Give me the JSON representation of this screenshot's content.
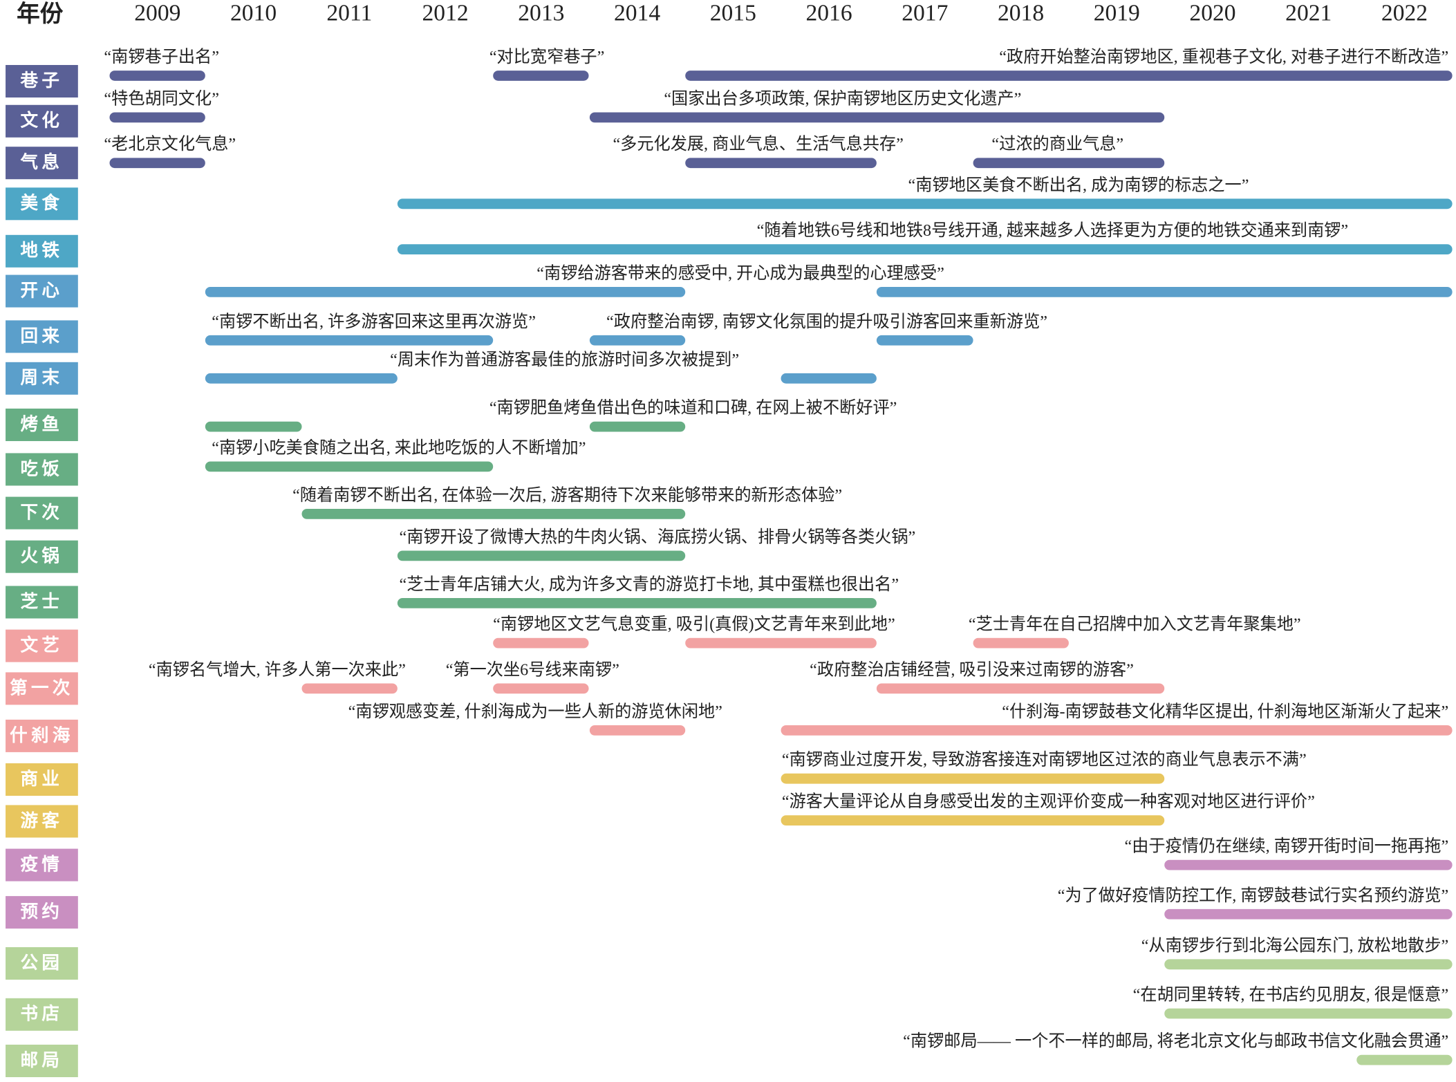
{
  "header": {
    "title": "年份",
    "years": [
      "2009",
      "2010",
      "2011",
      "2012",
      "2013",
      "2014",
      "2015",
      "2016",
      "2017",
      "2018",
      "2019",
      "2020",
      "2021",
      "2022"
    ]
  },
  "colors": {
    "navy": "#5a6096",
    "teal": "#4ea7c6",
    "blue": "#5b9fcb",
    "green": "#67ae84",
    "pink": "#f2a2a2",
    "yellow": "#e8c65e",
    "purple": "#c98fc1",
    "lightgreen": "#b5d49a"
  },
  "rows": [
    {
      "label": "巷子",
      "color": "#5a6096",
      "bars": [
        [
          2009,
          2009
        ],
        [
          2013,
          2013
        ],
        [
          2015,
          2022
        ]
      ],
      "quotes": [
        "“南锣巷子出名”",
        "“对比宽窄巷子”",
        "“政府开始整治南锣地区, 重视巷子文化, 对巷子进行不断改造”"
      ]
    },
    {
      "label": "文化",
      "color": "#5a6096",
      "bars": [
        [
          2009,
          2009
        ],
        [
          2014,
          2019
        ]
      ],
      "quotes": [
        "“特色胡同文化”",
        "“国家出台多项政策, 保护南锣地区历史文化遗产”"
      ]
    },
    {
      "label": "气息",
      "color": "#5a6096",
      "bars": [
        [
          2009,
          2009
        ],
        [
          2015,
          2016
        ],
        [
          2018,
          2019
        ]
      ],
      "quotes": [
        "“老北京文化气息”",
        "“多元化发展, 商业气息、生活气息共存”",
        "“过浓的商业气息”"
      ]
    },
    {
      "label": "美食",
      "color": "#4ea7c6",
      "bars": [
        [
          2012,
          2022
        ]
      ],
      "quotes": [
        "“南锣地区美食不断出名, 成为南锣的标志之一”"
      ]
    },
    {
      "label": "地铁",
      "color": "#4ea7c6",
      "bars": [
        [
          2012,
          2022
        ]
      ],
      "quotes": [
        "“随着地铁6号线和地铁8号线开通, 越来越多人选择更为方便的地铁交通来到南锣”"
      ]
    },
    {
      "label": "开心",
      "color": "#5b9fcb",
      "bars": [
        [
          2010,
          2014
        ],
        [
          2017,
          2022
        ]
      ],
      "quotes": [
        "“南锣给游客带来的感受中, 开心成为最典型的心理感受”"
      ]
    },
    {
      "label": "回来",
      "color": "#5b9fcb",
      "bars": [
        [
          2010,
          2012
        ],
        [
          2014,
          2014
        ],
        [
          2017,
          2017
        ]
      ],
      "quotes": [
        "“南锣不断出名, 许多游客回来这里再次游览”",
        "“政府整治南锣, 南锣文化氛围的提升吸引游客回来重新游览”"
      ]
    },
    {
      "label": "周末",
      "color": "#5b9fcb",
      "bars": [
        [
          2010,
          2011
        ],
        [
          2016,
          2016
        ]
      ],
      "quotes": [
        "“周末作为普通游客最佳的旅游时间多次被提到”"
      ]
    },
    {
      "label": "烤鱼",
      "color": "#67ae84",
      "bars": [
        [
          2010,
          2010
        ],
        [
          2014,
          2014
        ]
      ],
      "quotes": [
        "“南锣肥鱼烤鱼借出色的味道和口碑, 在网上被不断好评”"
      ]
    },
    {
      "label": "吃饭",
      "color": "#67ae84",
      "bars": [
        [
          2010,
          2012
        ]
      ],
      "quotes": [
        "“南锣小吃美食随之出名, 来此地吃饭的人不断增加”"
      ]
    },
    {
      "label": "下次",
      "color": "#67ae84",
      "bars": [
        [
          2011,
          2014
        ]
      ],
      "quotes": [
        "“随着南锣不断出名, 在体验一次后, 游客期待下次来能够带来的新形态体验”"
      ]
    },
    {
      "label": "火锅",
      "color": "#67ae84",
      "bars": [
        [
          2012,
          2014
        ]
      ],
      "quotes": [
        "“南锣开设了微博大热的牛肉火锅、海底捞火锅、排骨火锅等各类火锅”"
      ]
    },
    {
      "label": "芝士",
      "color": "#67ae84",
      "bars": [
        [
          2012,
          2016
        ]
      ],
      "quotes": [
        "“芝士青年店铺大火, 成为许多文青的游览打卡地, 其中蛋糕也很出名”"
      ]
    },
    {
      "label": "文艺",
      "color": "#f2a2a2",
      "bars": [
        [
          2013,
          2013
        ],
        [
          2015,
          2016
        ],
        [
          2018,
          2018
        ]
      ],
      "quotes": [
        "“南锣地区文艺气息变重, 吸引(真假)文艺青年来到此地”",
        "“芝士青年在自己招牌中加入文艺青年聚集地”"
      ]
    },
    {
      "label": "第一次",
      "color": "#f2a2a2",
      "bars": [
        [
          2011,
          2011
        ],
        [
          2013,
          2013
        ],
        [
          2017,
          2019
        ]
      ],
      "quotes": [
        "“南锣名气增大, 许多人第一次来此”",
        "“第一次坐6号线来南锣”",
        "“政府整治店铺经营, 吸引没来过南锣的游客”"
      ]
    },
    {
      "label": "什刹海",
      "color": "#f2a2a2",
      "bars": [
        [
          2014,
          2014
        ],
        [
          2016,
          2022
        ]
      ],
      "quotes": [
        "“南锣观感变差, 什刹海成为一些人新的游览休闲地”",
        "“什刹海-南锣鼓巷文化精华区提出, 什刹海地区渐渐火了起来”"
      ]
    },
    {
      "label": "商业",
      "color": "#e8c65e",
      "bars": [
        [
          2016,
          2019
        ]
      ],
      "quotes": [
        "“南锣商业过度开发, 导致游客接连对南锣地区过浓的商业气息表示不满”"
      ]
    },
    {
      "label": "游客",
      "color": "#e8c65e",
      "bars": [
        [
          2016,
          2019
        ]
      ],
      "quotes": [
        "“游客大量评论从自身感受出发的主观评价变成一种客观对地区进行评价”"
      ]
    },
    {
      "label": "疫情",
      "color": "#c98fc1",
      "bars": [
        [
          2020,
          2022
        ]
      ],
      "quotes": [
        "“由于疫情仍在继续, 南锣开街时间一拖再拖”"
      ]
    },
    {
      "label": "预约",
      "color": "#c98fc1",
      "bars": [
        [
          2020,
          2022
        ]
      ],
      "quotes": [
        "“为了做好疫情防控工作, 南锣鼓巷试行实名预约游览”"
      ]
    },
    {
      "label": "公园",
      "color": "#b5d49a",
      "bars": [
        [
          2020,
          2022
        ]
      ],
      "quotes": [
        "“从南锣步行到北海公园东门, 放松地散步”"
      ]
    },
    {
      "label": "书店",
      "color": "#b5d49a",
      "bars": [
        [
          2020,
          2022
        ]
      ],
      "quotes": [
        "“在胡同里转转, 在书店约见朋友, 很是惬意”"
      ]
    },
    {
      "label": "邮局",
      "color": "#b5d49a",
      "bars": [
        [
          2022,
          2022
        ]
      ],
      "quotes": [
        "“南锣邮局—— 一个不一样的邮局, 将老北京文化与邮政书信文化融会贯通”"
      ]
    }
  ]
}
